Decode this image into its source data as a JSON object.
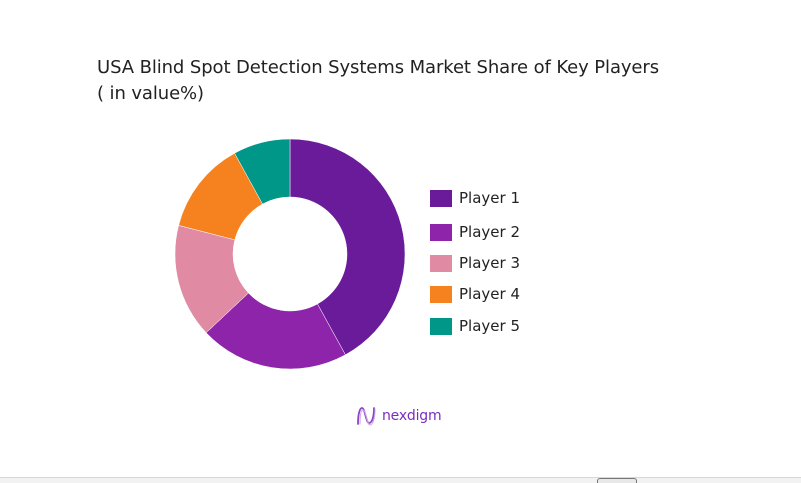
{
  "title": {
    "line1": "USA Blind Spot Detection Systems Market Share of Key Players",
    "line2": "( in value%)"
  },
  "legend": {
    "items": [
      {
        "label": "Player 1",
        "color": "#6a1b9a"
      },
      {
        "label": "Player 2",
        "color": "#8e24aa"
      },
      {
        "label": "Player 3",
        "color": "#e08aa4"
      },
      {
        "label": "Player 4",
        "color": "#f5821f"
      },
      {
        "label": "Player 5",
        "color": "#009688"
      }
    ]
  },
  "logo": {
    "text": "nexdigm",
    "icon": "nexdigm-wave-icon",
    "color": "#7b2cbf"
  },
  "chart_data": {
    "type": "pie",
    "subtype": "donut",
    "title": "USA Blind Spot Detection Systems Market Share of Key Players ( in value%)",
    "categories": [
      "Player 1",
      "Player 2",
      "Player 3",
      "Player 4",
      "Player 5"
    ],
    "values": [
      42,
      21,
      16,
      13,
      8
    ],
    "colors": [
      "#6a1b9a",
      "#8e24aa",
      "#e08aa4",
      "#f5821f",
      "#009688"
    ],
    "unit": "%",
    "start_angle": "12 o'clock, clockwise",
    "legend_position": "right",
    "data_labels": false
  }
}
